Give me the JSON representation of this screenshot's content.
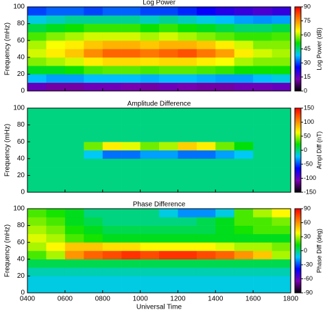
{
  "chart_data": [
    {
      "type": "heatmap",
      "title": "Log Power",
      "ylabel": "Frequency (mHz)",
      "colorbar_label": "Log Power (dB)",
      "x": [
        4.5,
        5.5,
        6.5,
        7.5,
        8.5,
        9.5,
        10.5,
        11.5,
        12.5,
        13.5,
        14.5,
        15.5,
        16.5,
        17.5
      ],
      "y": [
        5,
        15,
        25,
        35,
        45,
        55,
        65,
        75,
        85,
        95
      ],
      "values": [
        [
          15,
          12,
          12,
          14,
          14,
          13,
          12,
          14,
          13,
          12,
          12,
          14,
          14,
          15
        ],
        [
          38,
          36,
          36,
          38,
          38,
          38,
          37,
          38,
          38,
          37,
          36,
          36,
          38,
          40
        ],
        [
          50,
          50,
          52,
          55,
          56,
          56,
          55,
          56,
          56,
          55,
          54,
          52,
          52,
          52
        ],
        [
          58,
          60,
          62,
          66,
          68,
          68,
          67,
          68,
          68,
          66,
          64,
          60,
          58,
          58
        ],
        [
          62,
          66,
          70,
          76,
          80,
          80,
          78,
          80,
          82,
          78,
          74,
          66,
          62,
          60
        ],
        [
          60,
          64,
          66,
          70,
          72,
          72,
          70,
          72,
          72,
          70,
          66,
          62,
          58,
          58
        ],
        [
          55,
          58,
          60,
          62,
          62,
          62,
          60,
          62,
          60,
          58,
          56,
          54,
          54,
          55
        ],
        [
          48,
          50,
          52,
          54,
          54,
          54,
          52,
          54,
          52,
          50,
          48,
          46,
          46,
          48
        ],
        [
          40,
          42,
          44,
          44,
          44,
          44,
          42,
          44,
          42,
          40,
          38,
          36,
          35,
          36
        ],
        [
          30,
          32,
          32,
          30,
          32,
          32,
          30,
          30,
          28,
          25,
          22,
          20,
          18,
          20
        ]
      ],
      "xlim": [
        4,
        18
      ],
      "ylim": [
        0,
        100
      ],
      "yticks": [
        0,
        20,
        40,
        60,
        80,
        100
      ],
      "zlim": [
        0,
        90
      ],
      "zticks": [
        0,
        15,
        30,
        45,
        60,
        75,
        90
      ],
      "colormap": [
        "#000000",
        "#7a00b0",
        "#0000ff",
        "#00c8ff",
        "#00e000",
        "#ffff00",
        "#ff8000",
        "#ff0000"
      ]
    },
    {
      "type": "heatmap",
      "title": "Amplitude Difference",
      "ylabel": "Frequency (mHz)",
      "colorbar_label": "Ampl Diff (nT)",
      "x": [
        4.5,
        5.5,
        6.5,
        7.5,
        8.5,
        9.5,
        10.5,
        11.5,
        12.5,
        13.5,
        14.5,
        15.5,
        16.5,
        17.5
      ],
      "y": [
        5,
        15,
        25,
        35,
        45,
        55,
        65,
        75,
        85,
        95
      ],
      "values": [
        [
          0,
          0,
          0,
          0,
          0,
          0,
          0,
          0,
          0,
          0,
          0,
          0,
          0,
          0
        ],
        [
          0,
          0,
          0,
          0,
          0,
          0,
          0,
          0,
          0,
          0,
          0,
          0,
          0,
          0
        ],
        [
          0,
          0,
          0,
          0,
          0,
          0,
          0,
          0,
          0,
          0,
          0,
          0,
          0,
          0
        ],
        [
          0,
          0,
          0,
          0,
          0,
          0,
          0,
          0,
          0,
          0,
          0,
          0,
          0,
          0
        ],
        [
          0,
          0,
          0,
          -20,
          -40,
          -40,
          -30,
          -30,
          -40,
          -40,
          -30,
          -20,
          0,
          0
        ],
        [
          0,
          0,
          0,
          40,
          70,
          60,
          40,
          50,
          80,
          70,
          40,
          20,
          0,
          0
        ],
        [
          0,
          0,
          0,
          0,
          0,
          0,
          0,
          0,
          0,
          0,
          0,
          0,
          0,
          0
        ],
        [
          0,
          0,
          0,
          0,
          0,
          0,
          0,
          0,
          0,
          0,
          0,
          0,
          0,
          0
        ],
        [
          0,
          0,
          0,
          0,
          0,
          0,
          0,
          0,
          0,
          0,
          0,
          0,
          0,
          0
        ],
        [
          0,
          0,
          0,
          0,
          0,
          0,
          0,
          0,
          0,
          0,
          0,
          0,
          0,
          0
        ]
      ],
      "xlim": [
        4,
        18
      ],
      "ylim": [
        0,
        100
      ],
      "yticks": [
        0,
        20,
        40,
        60,
        80,
        100
      ],
      "zlim": [
        -150,
        150
      ],
      "zticks": [
        -150,
        -100,
        -50,
        0,
        50,
        100,
        150
      ],
      "colormap": [
        "#000000",
        "#7a00b0",
        "#0000ff",
        "#00c8ff",
        "#00e000",
        "#ffff00",
        "#ff8000",
        "#ff0000"
      ]
    },
    {
      "type": "heatmap",
      "title": "Phase Difference",
      "ylabel": "Frequency (mHz)",
      "colorbar_label": "Phase Diff (deg)",
      "xlabel": "Universal Time",
      "x": [
        4.5,
        5.5,
        6.5,
        7.5,
        8.5,
        9.5,
        10.5,
        11.5,
        12.5,
        13.5,
        14.5,
        15.5,
        16.5,
        17.5
      ],
      "y": [
        5,
        15,
        25,
        35,
        45,
        55,
        65,
        75,
        85,
        95
      ],
      "values": [
        [
          -10,
          -10,
          -10,
          -10,
          -10,
          -10,
          -10,
          -10,
          -10,
          -10,
          -10,
          -10,
          -10,
          -10
        ],
        [
          -10,
          -10,
          -10,
          -10,
          -10,
          -10,
          -10,
          -10,
          -10,
          -10,
          -10,
          -10,
          -10,
          -10
        ],
        [
          -5,
          -5,
          -5,
          -5,
          -5,
          -5,
          -5,
          -5,
          -5,
          -5,
          -5,
          -5,
          -5,
          -5
        ],
        [
          5,
          5,
          5,
          5,
          5,
          5,
          5,
          5,
          5,
          5,
          5,
          5,
          5,
          5
        ],
        [
          20,
          30,
          60,
          70,
          75,
          80,
          75,
          80,
          80,
          75,
          70,
          60,
          50,
          30
        ],
        [
          30,
          40,
          50,
          50,
          45,
          45,
          40,
          40,
          40,
          40,
          35,
          30,
          30,
          25
        ],
        [
          35,
          30,
          20,
          15,
          10,
          10,
          10,
          10,
          10,
          10,
          10,
          10,
          10,
          10
        ],
        [
          30,
          25,
          15,
          10,
          5,
          5,
          5,
          5,
          5,
          5,
          10,
          15,
          20,
          20
        ],
        [
          25,
          20,
          10,
          5,
          0,
          0,
          0,
          0,
          0,
          5,
          10,
          20,
          20,
          25
        ],
        [
          20,
          15,
          10,
          0,
          0,
          0,
          0,
          -10,
          -20,
          -20,
          -10,
          20,
          30,
          40
        ]
      ],
      "xlim": [
        4,
        18
      ],
      "ylim": [
        0,
        100
      ],
      "yticks": [
        0,
        20,
        40,
        60,
        80,
        100
      ],
      "xticks": [
        {
          "value": 4,
          "label": "0400"
        },
        {
          "value": 6,
          "label": "0600"
        },
        {
          "value": 8,
          "label": "0800"
        },
        {
          "value": 10,
          "label": "1000"
        },
        {
          "value": 12,
          "label": "1200"
        },
        {
          "value": 14,
          "label": "1400"
        },
        {
          "value": 16,
          "label": "1600"
        },
        {
          "value": 18,
          "label": "1800"
        }
      ],
      "zlim": [
        -90,
        90
      ],
      "zticks": [
        -90,
        -60,
        -30,
        0,
        30,
        60,
        90
      ],
      "colormap": [
        "#000000",
        "#7a00b0",
        "#0000ff",
        "#00c8ff",
        "#00e000",
        "#ffff00",
        "#ff8000",
        "#ff0000"
      ]
    }
  ]
}
